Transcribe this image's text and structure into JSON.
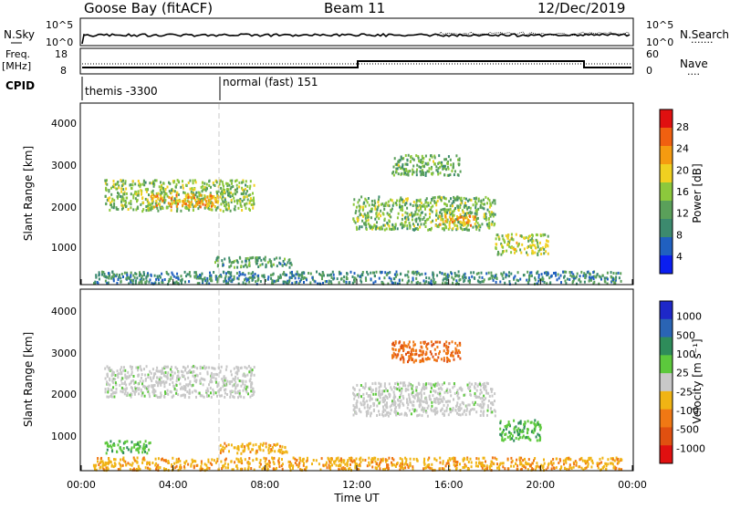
{
  "header": {
    "station": "Goose Bay (fitACF)",
    "beam": "Beam 11",
    "date": "12/Dec/2019"
  },
  "noise_panel": {
    "left_label": "N.Sky",
    "right_label": "N.Search",
    "left_ticks": [
      "10^5",
      "10^0"
    ],
    "right_ticks": [
      "10^5",
      "10^0"
    ]
  },
  "freq_panel": {
    "left_label_1": "Freq.",
    "left_label_2": "[MHz]",
    "left_ticks": [
      "18",
      "8"
    ],
    "right_ticks": [
      "60",
      "0"
    ],
    "right_label": "Nave",
    "right_dots": "····",
    "search_dots": "·······"
  },
  "cpid": {
    "label": "CPID",
    "modes": [
      {
        "text": "themis -3300",
        "start_hour": 0
      },
      {
        "text": "normal (fast) 151",
        "start_hour": 6
      }
    ]
  },
  "colors": {
    "power_scale": [
      "#0a1ef0",
      "#2060c0",
      "#3c8a6e",
      "#5aa05a",
      "#8cc83c",
      "#f0d020",
      "#f59b10",
      "#f06010",
      "#e01010"
    ],
    "velocity_scale": [
      "#1e28c8",
      "#2a64b4",
      "#2e8c5a",
      "#5cc83c",
      "#c8c8c8",
      "#f0b414",
      "#f07814",
      "#e05010",
      "#e01010"
    ],
    "ground_scatter": "#c8c8c8"
  },
  "chart_data": [
    {
      "type": "heatmap",
      "name": "power",
      "ylabel": "Slant Range [km]",
      "yticks": [
        "4000",
        "3000",
        "2000",
        "1000"
      ],
      "ylim": [
        180,
        4500
      ],
      "xlim_hours": [
        0,
        24
      ],
      "colorbar": {
        "label": "Power [dB]",
        "ticks": [
          "28",
          "24",
          "20",
          "16",
          "12",
          "8",
          "4"
        ],
        "range": [
          0,
          30
        ]
      },
      "regions": [
        {
          "t0": 1.0,
          "t1": 7.5,
          "r0": 1950,
          "r1": 2700,
          "level": 14
        },
        {
          "t0": 3.0,
          "t1": 6.0,
          "r0": 2050,
          "r1": 2350,
          "level": 22
        },
        {
          "t0": 11.8,
          "t1": 18.0,
          "r0": 1500,
          "r1": 2300,
          "level": 13
        },
        {
          "t0": 15.5,
          "t1": 17.2,
          "r0": 1600,
          "r1": 1850,
          "level": 22
        },
        {
          "t0": 18.0,
          "t1": 20.3,
          "r0": 900,
          "r1": 1400,
          "level": 16
        },
        {
          "t0": 5.8,
          "t1": 9.2,
          "r0": 600,
          "r1": 850,
          "level": 10
        },
        {
          "t0": 0.5,
          "t1": 23.5,
          "r0": 200,
          "r1": 500,
          "level": 8
        },
        {
          "t0": 13.5,
          "t1": 16.5,
          "r0": 2800,
          "r1": 3300,
          "level": 12
        }
      ]
    },
    {
      "type": "heatmap",
      "name": "velocity",
      "ylabel": "Slant Range [km]",
      "yticks": [
        "4000",
        "3000",
        "2000",
        "1000"
      ],
      "ylim": [
        180,
        4500
      ],
      "xlim_hours": [
        0,
        24
      ],
      "xticks": [
        "00:00",
        "04:00",
        "08:00",
        "12:00",
        "16:00",
        "20:00",
        "00:00"
      ],
      "xlabel": "Time UT",
      "colorbar": {
        "label": "Velocity [m s⁻¹]",
        "ticks": [
          "1000",
          "500",
          "100",
          "25",
          "-25",
          "-100",
          "-500",
          "-1000"
        ]
      },
      "regions": [
        {
          "t0": 1.0,
          "t1": 7.5,
          "r0": 1950,
          "r1": 2700,
          "value": 0
        },
        {
          "t0": 11.8,
          "t1": 18.0,
          "r0": 1500,
          "r1": 2300,
          "value": 0
        },
        {
          "t0": 18.2,
          "t1": 20.0,
          "r0": 900,
          "r1": 1400,
          "value": 150
        },
        {
          "t0": 6.0,
          "t1": 9.0,
          "r0": 600,
          "r1": 850,
          "value": -80
        },
        {
          "t0": 1.0,
          "t1": 3.0,
          "r0": 600,
          "r1": 900,
          "value": 120
        },
        {
          "t0": 0.5,
          "t1": 23.5,
          "r0": 200,
          "r1": 500,
          "value": -60
        },
        {
          "t0": 13.5,
          "t1": 16.5,
          "r0": 2800,
          "r1": 3300,
          "value": -200
        }
      ]
    }
  ]
}
